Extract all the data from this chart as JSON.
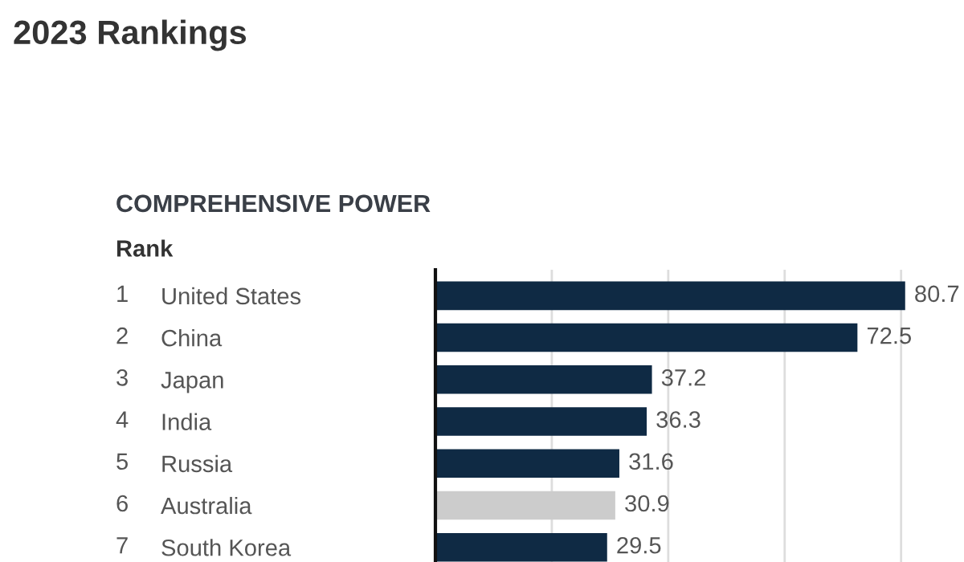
{
  "chart_data": {
    "type": "bar",
    "orientation": "horizontal",
    "title": "2023 Rankings",
    "subtitle": "COMPREHENSIVE POWER",
    "categories": [
      "United States",
      "China",
      "Japan",
      "India",
      "Russia",
      "Australia",
      "South Korea"
    ],
    "values": [
      80.7,
      72.5,
      37.2,
      36.3,
      31.6,
      30.9,
      29.5
    ],
    "colors": [
      "#0f2a44",
      "#0f2a44",
      "#0f2a44",
      "#0f2a44",
      "#0f2a44",
      "#cccccc",
      "#0f2a44"
    ],
    "data_labels": true,
    "xticks": [
      {
        "value": 20,
        "label": null
      },
      {
        "value": 40,
        "label": null
      },
      {
        "value": 60,
        "label": null
      },
      {
        "value": 80,
        "label": null
      }
    ],
    "grid": "x",
    "tick_labels": "y",
    "annotations": [
      "Rank",
      "1",
      "2",
      "3",
      "4",
      "5",
      "6",
      "7"
    ]
  }
}
